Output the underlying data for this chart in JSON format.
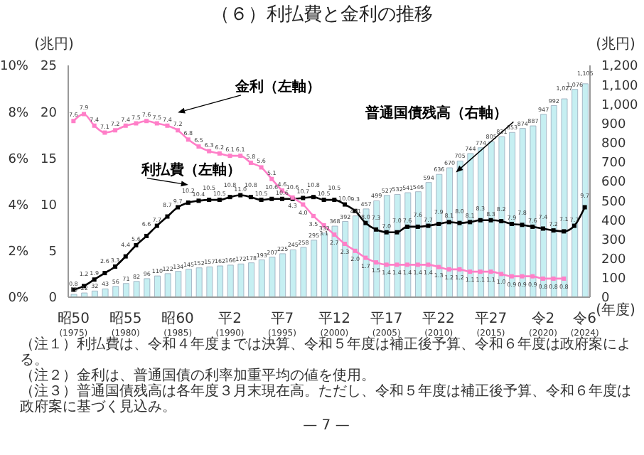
{
  "chart_data": {
    "type": "bar",
    "title": "（６）利払費と金利の推移",
    "categories": [
      "昭50\n(1975)",
      null,
      null,
      null,
      null,
      "昭55\n(1980)",
      null,
      null,
      null,
      null,
      "昭60\n(1985)",
      null,
      null,
      null,
      null,
      "平2\n(1990)",
      null,
      null,
      null,
      null,
      "平7\n(1995)",
      null,
      null,
      null,
      null,
      "平12\n(2000)",
      null,
      null,
      null,
      null,
      "平17\n(2005)",
      null,
      null,
      null,
      null,
      "平22\n(2010)",
      null,
      null,
      null,
      null,
      "平27\n(2015)",
      null,
      null,
      null,
      null,
      "令2\n(2020)",
      null,
      null,
      null,
      "令6\n(2024)"
    ],
    "series": [
      {
        "name": "普通国債残高（右軸）",
        "axis": "y2",
        "color": "#c6eff2",
        "values": [
          15,
          22,
          32,
          43,
          56,
          71,
          82,
          96,
          110,
          122,
          134,
          145,
          152,
          157,
          162,
          166,
          172,
          178,
          193,
          207,
          225,
          245,
          258,
          295,
          332,
          368,
          392,
          421,
          457,
          499,
          527,
          532,
          541,
          546,
          594,
          636,
          670,
          705,
          744,
          774,
          805,
          831,
          853,
          874,
          887,
          947,
          992,
          1027,
          1076,
          1105
        ],
        "value_labels": [
          "15",
          "22",
          "32",
          "43",
          "56",
          "71",
          "82",
          "96",
          "110",
          "122",
          "134",
          "145",
          "152",
          "157",
          "162",
          "166",
          "172",
          "178",
          "193",
          "207",
          "225",
          "245",
          "258",
          "295",
          "332",
          "368",
          "392",
          "421",
          "457",
          "499",
          "527",
          "532",
          "541",
          "546",
          "594",
          "636",
          "670",
          "705",
          "744",
          "774",
          "805",
          "831",
          "853",
          "874",
          "887",
          "947",
          "992",
          "1,027",
          "1,076",
          "1,105"
        ]
      },
      {
        "name": "利払費（左軸）",
        "type": "line",
        "color": "#000000",
        "values": [
          0.8,
          1.2,
          1.9,
          2.6,
          3.3,
          4.4,
          5.6,
          6.6,
          7.7,
          8.7,
          9.7,
          10.2,
          10.4,
          10.5,
          10.5,
          10.8,
          11.0,
          10.8,
          10.5,
          10.6,
          10.6,
          10.6,
          10.7,
          10.8,
          10.5,
          10.5,
          10.0,
          9.3,
          8.0,
          7.3,
          7.0,
          7.0,
          7.6,
          7.6,
          7.7,
          7.9,
          8.1,
          8.0,
          8.1,
          8.3,
          8.3,
          8.2,
          7.9,
          7.8,
          7.6,
          7.4,
          7.2,
          7.1,
          7.7,
          9.7
        ],
        "value_labels": [
          "0.8",
          "1.2",
          "1.9",
          "2.6",
          "3.3",
          "4.4",
          "5.6",
          "6.6",
          "7.7",
          "8.7",
          "9.7",
          "10.2",
          "10.4",
          "10.5",
          "10.5",
          "10.8",
          "11.0",
          "10.8",
          "10.5",
          "10.6",
          "10.6",
          "10.6",
          "10.7",
          "10.8",
          "10.5",
          "10.5",
          "10.0",
          "9.3",
          "8.0",
          "7.3",
          "7.0",
          "7.0",
          "7.6",
          "7.6",
          "7.7",
          "7.9",
          "8.1",
          "8.0",
          "8.1",
          "8.3",
          "8.3",
          "8.2",
          "7.9",
          "7.8",
          "7.6",
          "7.4",
          "7.2",
          "7.1",
          "7.7",
          "9.7"
        ]
      },
      {
        "name": "金利（左軸）",
        "type": "line",
        "axis": "y3",
        "color": "#ff7fc8",
        "values": [
          7.6,
          7.9,
          7.4,
          7.1,
          7.2,
          7.4,
          7.5,
          7.6,
          7.5,
          7.4,
          7.2,
          6.8,
          6.5,
          6.3,
          6.2,
          6.1,
          6.1,
          5.8,
          5.6,
          5.1,
          4.6,
          4.3,
          4.0,
          3.5,
          3.1,
          2.7,
          2.3,
          2.0,
          1.7,
          1.5,
          1.4,
          1.4,
          1.4,
          1.4,
          1.4,
          1.3,
          1.2,
          1.2,
          1.1,
          1.1,
          1.1,
          1.0,
          0.9,
          0.9,
          0.9,
          0.8,
          0.8,
          0.8,
          null,
          null
        ],
        "value_labels": [
          "7.6",
          "7.9",
          "7.4",
          "7.1",
          "7.2",
          "7.4",
          "7.5",
          "7.6",
          "7.5",
          "7.4",
          "7.2",
          "6.8",
          "6.5",
          "6.3",
          "6.2",
          "6.1",
          "6.1",
          "5.8",
          "5.6",
          "5.1",
          "4.6",
          "4.3",
          "4.0",
          "3.5",
          "3.1",
          "2.7",
          "2.3",
          "2.0",
          "1.7",
          "1.5",
          "1.4",
          "1.4",
          "1.4",
          "1.4",
          "1.4",
          "1.3",
          "1.2",
          "1.2",
          "1.1",
          "1.1",
          "1.1",
          "1.0",
          "0.9",
          "0.9",
          "0.9",
          "0.8",
          "0.8",
          "0.8",
          null,
          null
        ]
      }
    ],
    "xlabel": "(年度)",
    "ylabel": "(兆円)",
    "y2label": "(兆円)",
    "ylim": [
      0,
      25
    ],
    "yticks": [
      0,
      5,
      10,
      15,
      20,
      25
    ],
    "y2lim": [
      0,
      1200
    ],
    "y2ticks": [
      0,
      {
        "value": 100,
        "label": "100"
      },
      200,
      300,
      400,
      500,
      600,
      700,
      800,
      900,
      {
        "value": 1000,
        "label": "1,000"
      },
      {
        "value": 1100,
        "label": "1,100"
      },
      {
        "value": 1200,
        "label": "1,200"
      }
    ],
    "y3lim": [
      0,
      10
    ],
    "y3ticks": [
      {
        "value": 0,
        "label": "0%"
      },
      {
        "value": 2,
        "label": "2%"
      },
      {
        "value": 4,
        "label": "4%"
      },
      {
        "value": 6,
        "label": "6%"
      },
      {
        "value": 8,
        "label": "8%"
      },
      {
        "value": 10,
        "label": "10%"
      }
    ],
    "marker": "square",
    "annotations": [
      "（注１）利払費は、令和４年度までは決算、令和５年度は補正後予算、令和６年度は政府案による。",
      "（注２）金利は、普通国債の利率加重平均の値を使用。",
      "（注３）普通国債残高は各年度３月末現在高。ただし、令和５年度は補正後予算、令和６年度は政府案に基づく見込み。",
      "— 7 —"
    ]
  }
}
